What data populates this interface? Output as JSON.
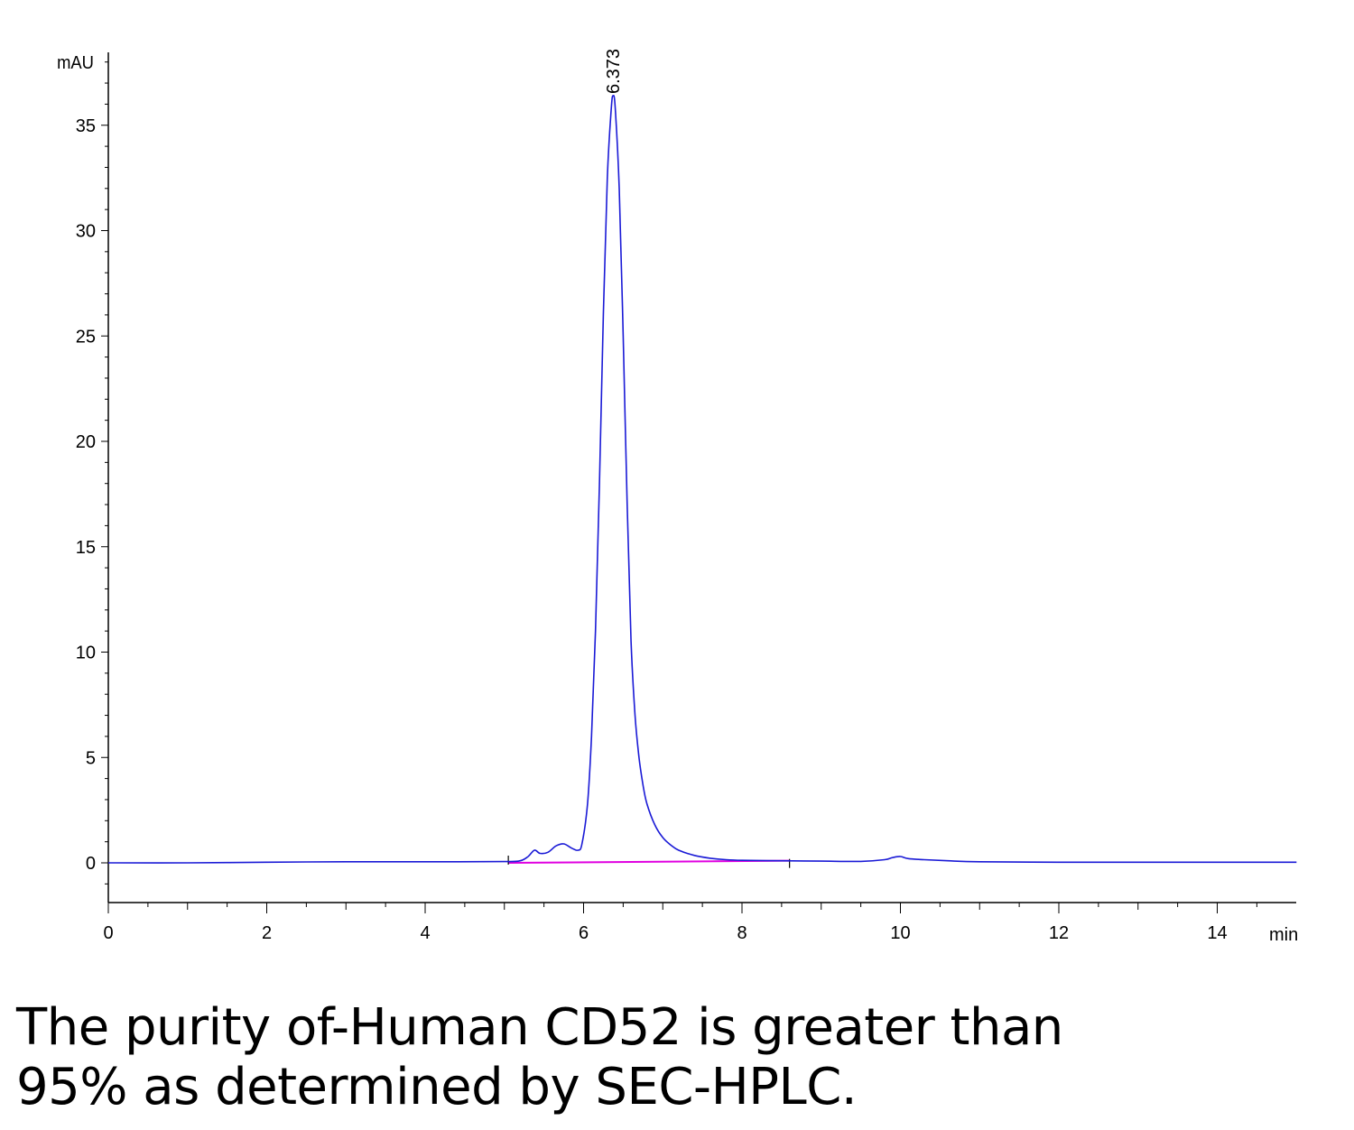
{
  "chart_data": {
    "type": "line",
    "ylabel": "mAU",
    "xlabel": "min",
    "xlim": [
      0,
      15
    ],
    "ylim": [
      -1.9,
      38.7
    ],
    "x_ticks": [
      0,
      2,
      4,
      6,
      8,
      10,
      12,
      14
    ],
    "y_ticks": [
      0,
      5,
      10,
      15,
      20,
      25,
      30,
      35
    ],
    "peak_label": "6.373",
    "peak": {
      "x": 6.373,
      "y": 36.4
    },
    "series": [
      {
        "color": "#1a1ad6",
        "x": [
          0.0,
          1.0,
          2.0,
          3.0,
          4.0,
          5.0,
          5.2,
          5.3,
          5.38,
          5.45,
          5.55,
          5.65,
          5.75,
          5.85,
          5.93,
          5.98,
          6.05,
          6.1,
          6.15,
          6.2,
          6.25,
          6.3,
          6.35,
          6.373,
          6.4,
          6.45,
          6.5,
          6.55,
          6.6,
          6.65,
          6.7,
          6.75,
          6.8,
          6.9,
          7.0,
          7.1,
          7.2,
          7.4,
          7.6,
          7.8,
          8.0,
          8.5,
          9.0,
          9.5,
          9.8,
          9.9,
          10.0,
          10.1,
          10.3,
          10.6,
          11.0,
          12.0,
          13.0,
          14.0,
          15.0
        ],
        "y": [
          0.0,
          0.0,
          0.03,
          0.05,
          0.05,
          0.06,
          0.1,
          0.3,
          0.6,
          0.45,
          0.5,
          0.8,
          0.9,
          0.7,
          0.6,
          0.9,
          2.8,
          6.0,
          11.0,
          18.0,
          26.0,
          32.5,
          35.8,
          36.4,
          35.8,
          32.0,
          25.0,
          17.0,
          10.5,
          7.0,
          5.0,
          3.7,
          2.8,
          1.8,
          1.2,
          0.85,
          0.6,
          0.35,
          0.22,
          0.15,
          0.12,
          0.1,
          0.08,
          0.07,
          0.15,
          0.25,
          0.3,
          0.2,
          0.15,
          0.1,
          0.05,
          0.03,
          0.03,
          0.03,
          0.03
        ]
      }
    ],
    "baseline": {
      "color": "#e000e0",
      "x": [
        5.05,
        8.6
      ],
      "y": [
        0.0,
        0.1
      ]
    }
  },
  "caption": {
    "line1": "The purity of-Human CD52 is greater than",
    "line2": "95% as determined by SEC-HPLC."
  }
}
